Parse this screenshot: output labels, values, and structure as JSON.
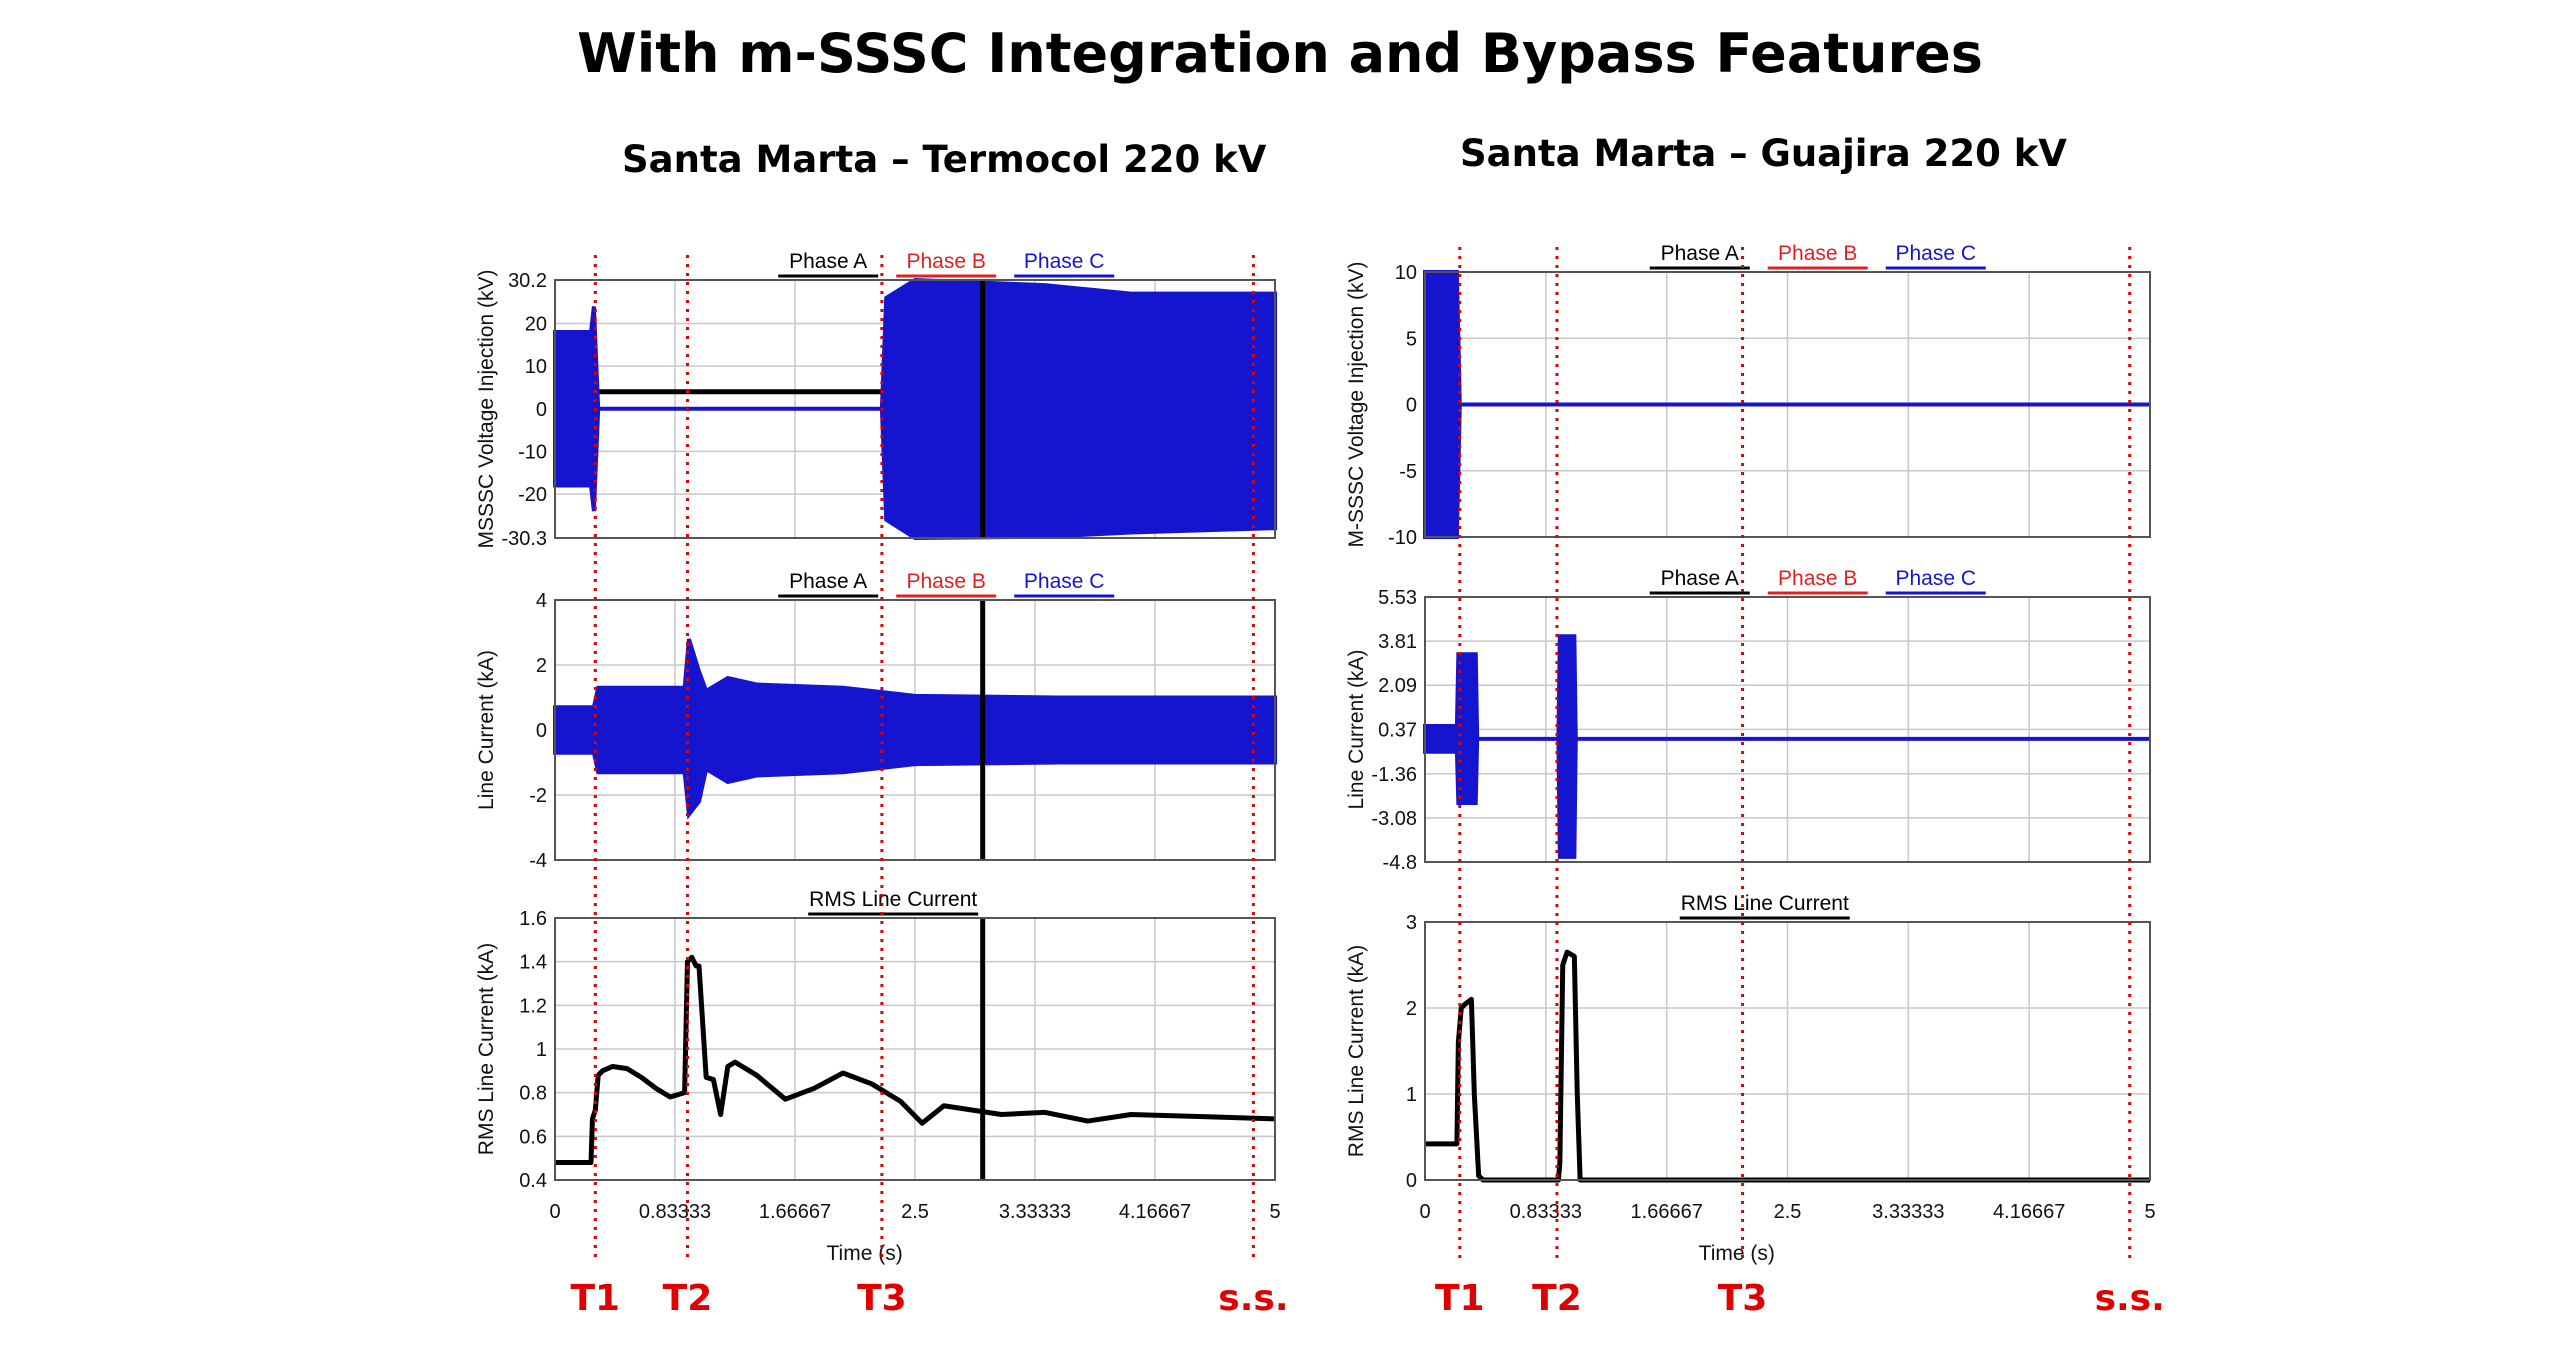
{
  "title": "With m-SSSC Integration and Bypass Features",
  "panels": [
    {
      "title": "Santa Marta – Termocol 220 kV"
    },
    {
      "title": "Santa Marta – Guajira 220 kV"
    }
  ],
  "colors": {
    "phase_a": "#000000",
    "phase_b": "#e02020",
    "phase_c": "#1515d0",
    "event_line": "#e00000",
    "grid": "#c8c8c8"
  },
  "chart_data": [
    {
      "type": "line",
      "id": "left-voltage",
      "legend": [
        "Phase A",
        "Phase B",
        "Phase C"
      ],
      "ylabel": "MSSSC Voltage Injection (kV)",
      "xlim": [
        0,
        5
      ],
      "ylim": [
        -30.3,
        30.2
      ],
      "yticks": [
        30.2,
        20,
        10,
        0,
        -10,
        -20,
        -30.3
      ],
      "xticks": [
        0,
        0.83333,
        1.66667,
        2.5,
        3.33333,
        4.16667,
        5
      ],
      "cursor_x": 2.97,
      "series": [
        {
          "name": "Phase A",
          "x": [
            0,
            5
          ],
          "values": [
            4,
            4
          ]
        },
        {
          "name": "Phase C",
          "envelope": [
            {
              "x": 0,
              "max": 18,
              "min": -18
            },
            {
              "x": 0.25,
              "max": 18,
              "min": -18
            },
            {
              "x": 0.27,
              "max": 24,
              "min": -24
            },
            {
              "x": 0.3,
              "max": 0,
              "min": 0
            },
            {
              "x": 2.27,
              "max": 0,
              "min": 0
            },
            {
              "x": 2.3,
              "max": 26,
              "min": -26
            },
            {
              "x": 2.5,
              "max": 30.2,
              "min": -30.3
            },
            {
              "x": 3.4,
              "max": 29,
              "min": -30
            },
            {
              "x": 4.0,
              "max": 27,
              "min": -29
            },
            {
              "x": 5,
              "max": 27,
              "min": -28
            }
          ]
        }
      ]
    },
    {
      "type": "line",
      "id": "left-current",
      "legend": [
        "Phase A",
        "Phase B",
        "Phase C"
      ],
      "ylabel": "Line Current (kA)",
      "xlim": [
        0,
        5
      ],
      "ylim": [
        -4,
        4
      ],
      "yticks": [
        4,
        2,
        0,
        -2,
        -4
      ],
      "xticks": [
        0,
        0.83333,
        1.66667,
        2.5,
        3.33333,
        4.16667,
        5
      ],
      "cursor_x": 2.97,
      "series": [
        {
          "name": "Phase C",
          "envelope": [
            {
              "x": 0,
              "max": 0.7,
              "min": -0.7
            },
            {
              "x": 0.27,
              "max": 0.7,
              "min": -0.7
            },
            {
              "x": 0.3,
              "max": 1.3,
              "min": -1.3
            },
            {
              "x": 0.9,
              "max": 1.3,
              "min": -1.3
            },
            {
              "x": 0.93,
              "max": 2.8,
              "min": -2.6
            },
            {
              "x": 1.0,
              "max": 1.8,
              "min": -2.2
            },
            {
              "x": 1.05,
              "max": 1.2,
              "min": -1.2
            },
            {
              "x": 1.2,
              "max": 1.6,
              "min": -1.6
            },
            {
              "x": 1.4,
              "max": 1.4,
              "min": -1.4
            },
            {
              "x": 2.0,
              "max": 1.3,
              "min": -1.3
            },
            {
              "x": 2.5,
              "max": 1.05,
              "min": -1.05
            },
            {
              "x": 3.5,
              "max": 1.0,
              "min": -1.0
            },
            {
              "x": 5,
              "max": 1.0,
              "min": -1.0
            }
          ]
        }
      ]
    },
    {
      "type": "line",
      "id": "left-rms",
      "legend": [
        "RMS Line Current"
      ],
      "ylabel": "RMS Line Current (kA)",
      "xlabel": "Time (s)",
      "xlim": [
        0,
        5
      ],
      "ylim": [
        0.4,
        1.6
      ],
      "yticks": [
        1.6,
        1.4,
        1.2,
        1,
        0.8,
        0.6,
        0.4
      ],
      "xticks": [
        0,
        0.83333,
        1.66667,
        2.5,
        3.33333,
        4.16667,
        5
      ],
      "cursor_x": 2.97,
      "series": [
        {
          "name": "RMS Line Current",
          "x": [
            0,
            0.25,
            0.26,
            0.28,
            0.3,
            0.33,
            0.4,
            0.5,
            0.6,
            0.7,
            0.8,
            0.9,
            0.92,
            0.95,
            0.98,
            1.0,
            1.05,
            1.1,
            1.15,
            1.2,
            1.25,
            1.4,
            1.6,
            1.8,
            2.0,
            2.2,
            2.4,
            2.55,
            2.7,
            2.9,
            3.1,
            3.4,
            3.7,
            4.0,
            4.5,
            5
          ],
          "values": [
            0.48,
            0.48,
            0.68,
            0.72,
            0.88,
            0.9,
            0.92,
            0.91,
            0.87,
            0.82,
            0.78,
            0.8,
            1.4,
            1.42,
            1.38,
            1.38,
            0.87,
            0.86,
            0.7,
            0.92,
            0.94,
            0.88,
            0.77,
            0.82,
            0.89,
            0.84,
            0.76,
            0.66,
            0.74,
            0.72,
            0.7,
            0.71,
            0.67,
            0.7,
            0.69,
            0.68
          ]
        }
      ]
    },
    {
      "type": "line",
      "id": "right-voltage",
      "legend": [
        "Phase A",
        "Phase B",
        "Phase C"
      ],
      "ylabel": "M-SSSC Voltage Injection (kV)",
      "xlim": [
        0,
        5
      ],
      "ylim": [
        -10,
        10
      ],
      "yticks": [
        10,
        5,
        0,
        -5,
        -10
      ],
      "xticks": [
        0,
        0.83333,
        1.66667,
        2.5,
        3.33333,
        4.16667,
        5
      ],
      "series": [
        {
          "name": "Phase C",
          "envelope": [
            {
              "x": 0,
              "max": 10,
              "min": -10
            },
            {
              "x": 0.22,
              "max": 10,
              "min": -10
            },
            {
              "x": 0.24,
              "max": 0,
              "min": 0
            },
            {
              "x": 5,
              "max": 0,
              "min": 0
            }
          ]
        }
      ]
    },
    {
      "type": "line",
      "id": "right-current",
      "legend": [
        "Phase A",
        "Phase B",
        "Phase C"
      ],
      "ylabel": "Line Current (kA)",
      "xlim": [
        0,
        5
      ],
      "ylim": [
        -4.8,
        5.53
      ],
      "yticks": [
        5.53,
        3.81,
        2.09,
        0.37,
        -1.36,
        -3.08,
        -4.8
      ],
      "xticks": [
        0,
        0.83333,
        1.66667,
        2.5,
        3.33333,
        4.16667,
        5
      ],
      "series": [
        {
          "name": "Phase C",
          "envelope": [
            {
              "x": 0,
              "max": 0.5,
              "min": -0.5
            },
            {
              "x": 0.22,
              "max": 0.5,
              "min": -0.5
            },
            {
              "x": 0.23,
              "max": 3.3,
              "min": -2.5
            },
            {
              "x": 0.35,
              "max": 3.3,
              "min": -2.5
            },
            {
              "x": 0.36,
              "max": 0,
              "min": 0
            },
            {
              "x": 0.92,
              "max": 0,
              "min": 0
            },
            {
              "x": 0.93,
              "max": 4.0,
              "min": -4.6
            },
            {
              "x": 1.03,
              "max": 4.0,
              "min": -4.6
            },
            {
              "x": 1.04,
              "max": 0,
              "min": 0
            },
            {
              "x": 5,
              "max": 0,
              "min": 0
            }
          ]
        }
      ]
    },
    {
      "type": "line",
      "id": "right-rms",
      "legend": [
        "RMS Line Current"
      ],
      "ylabel": "RMS Line Current (kA)",
      "xlabel": "Time (s)",
      "xlim": [
        0,
        5
      ],
      "ylim": [
        0,
        3
      ],
      "yticks": [
        3,
        2,
        1,
        0
      ],
      "xticks": [
        0,
        0.83333,
        1.66667,
        2.5,
        3.33333,
        4.16667,
        5
      ],
      "series": [
        {
          "name": "RMS Line Current",
          "x": [
            0,
            0.22,
            0.23,
            0.25,
            0.28,
            0.32,
            0.34,
            0.37,
            0.4,
            0.92,
            0.93,
            0.95,
            0.98,
            1.03,
            1.05,
            1.07,
            5
          ],
          "values": [
            0.42,
            0.42,
            1.6,
            2.0,
            2.05,
            2.1,
            1.0,
            0.05,
            0,
            0,
            0.2,
            2.5,
            2.65,
            2.6,
            1.0,
            0,
            0
          ]
        }
      ]
    }
  ],
  "events": [
    {
      "label": "T1",
      "x": 0.28
    },
    {
      "label": "T2",
      "x": 0.92
    },
    {
      "label": "T3",
      "x": 2.27
    },
    {
      "label": "s.s.",
      "x": 4.85
    }
  ],
  "events_right": [
    {
      "label": "T1",
      "x": 0.24
    },
    {
      "label": "T2",
      "x": 0.91
    },
    {
      "label": "T3",
      "x": 2.19
    },
    {
      "label": "s.s.",
      "x": 4.86
    }
  ]
}
